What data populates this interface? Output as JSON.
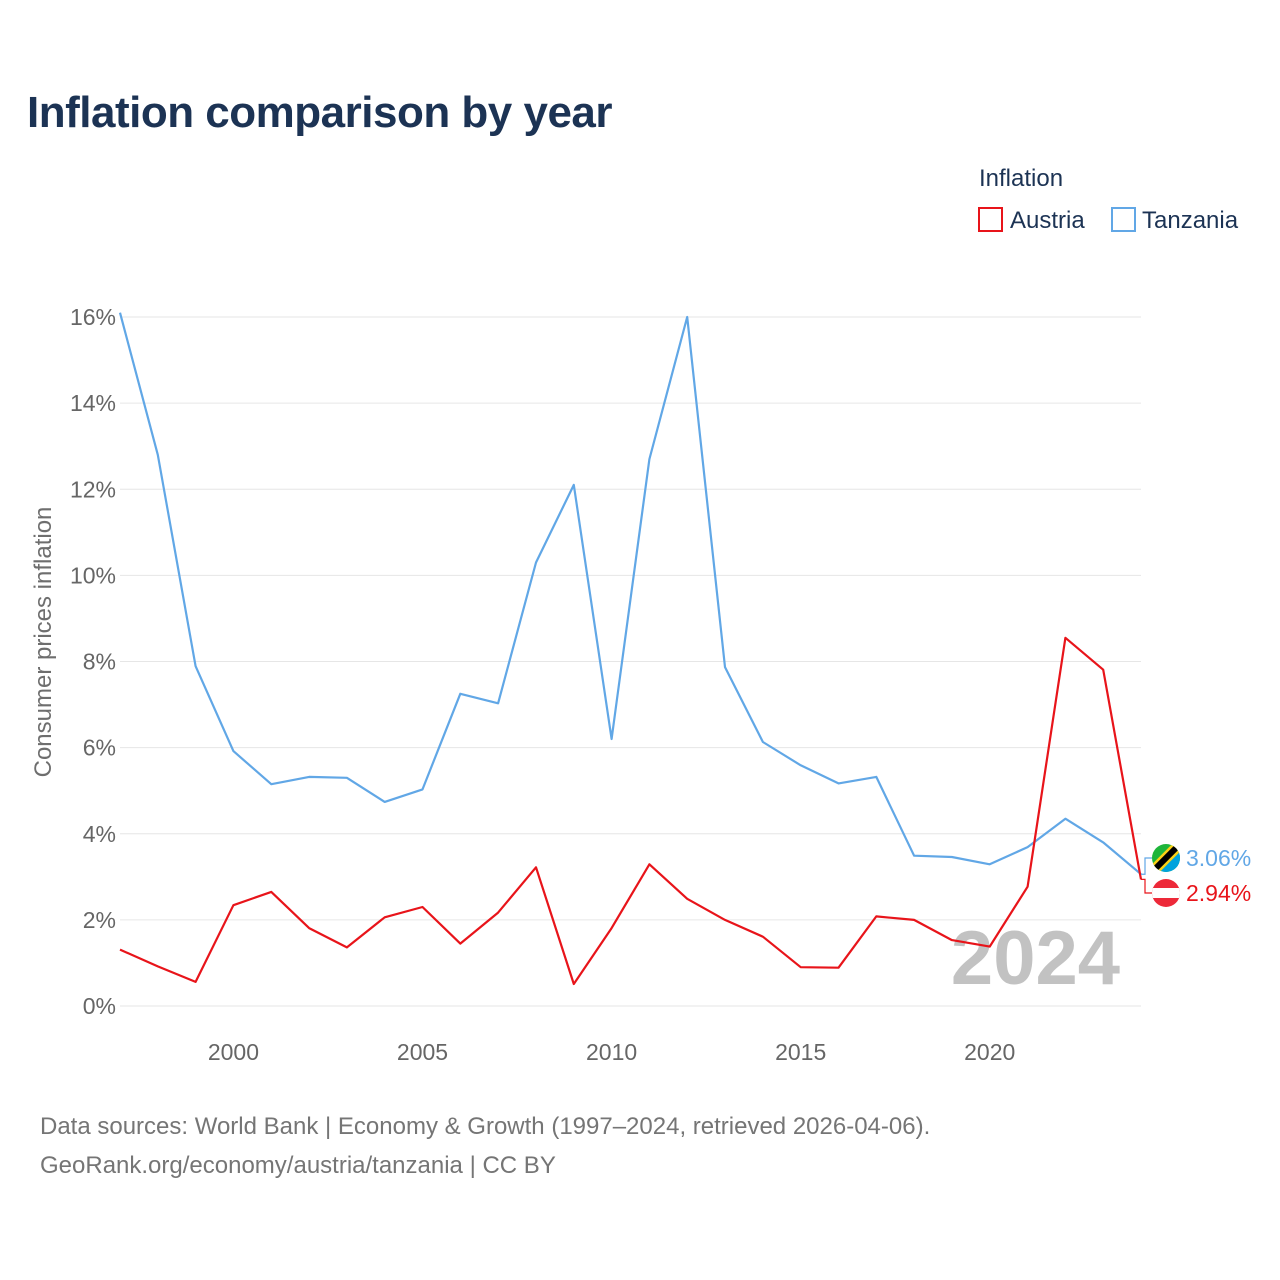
{
  "title": "Inflation comparison by year",
  "legend": {
    "title": "Inflation",
    "items": [
      {
        "name": "Austria",
        "color": "#e8141a"
      },
      {
        "name": "Tanzania",
        "color": "#61a7e6"
      }
    ]
  },
  "year_watermark": "2024",
  "end_labels": {
    "tanzania": "3.06%",
    "austria": "2.94%"
  },
  "sources": {
    "line1": "Data sources: World Bank | Economy & Growth (1997–2024, retrieved 2026-04-06).",
    "line2": "GeoRank.org/economy/austria/tanzania | CC BY"
  },
  "chart_data": {
    "type": "line",
    "title": "Inflation comparison by year",
    "xlabel": "",
    "ylabel": "Consumer prices inflation",
    "xlim": [
      1997,
      2024
    ],
    "ylim": [
      0,
      16
    ],
    "yticks": [
      0,
      2,
      4,
      6,
      8,
      10,
      12,
      14,
      16
    ],
    "ytick_labels": [
      "0%",
      "2%",
      "4%",
      "6%",
      "8%",
      "10%",
      "12%",
      "14%",
      "16%"
    ],
    "xticks": [
      2000,
      2005,
      2010,
      2015,
      2020
    ],
    "xtick_labels": [
      "2000",
      "2005",
      "2010",
      "2015",
      "2020"
    ],
    "x": [
      1997,
      1998,
      1999,
      2000,
      2001,
      2002,
      2003,
      2004,
      2005,
      2006,
      2007,
      2008,
      2009,
      2010,
      2011,
      2012,
      2013,
      2014,
      2015,
      2016,
      2017,
      2018,
      2019,
      2020,
      2021,
      2022,
      2023,
      2024
    ],
    "series": [
      {
        "name": "Austria",
        "color": "#e8141a",
        "values": [
          1.31,
          0.92,
          0.56,
          2.34,
          2.65,
          1.81,
          1.36,
          2.06,
          2.3,
          1.45,
          2.17,
          3.22,
          0.51,
          1.81,
          3.29,
          2.49,
          2.0,
          1.61,
          0.9,
          0.89,
          2.08,
          2.0,
          1.53,
          1.38,
          2.77,
          8.55,
          7.81,
          2.94
        ]
      },
      {
        "name": "Tanzania",
        "color": "#61a7e6",
        "values": [
          16.1,
          12.8,
          7.89,
          5.92,
          5.15,
          5.32,
          5.3,
          4.74,
          5.03,
          7.25,
          7.03,
          10.3,
          12.1,
          6.2,
          12.7,
          16.0,
          7.87,
          6.13,
          5.59,
          5.17,
          5.32,
          3.49,
          3.46,
          3.29,
          3.69,
          4.35,
          3.8,
          3.06
        ]
      }
    ],
    "grid": true,
    "legend_position": "top-right"
  }
}
